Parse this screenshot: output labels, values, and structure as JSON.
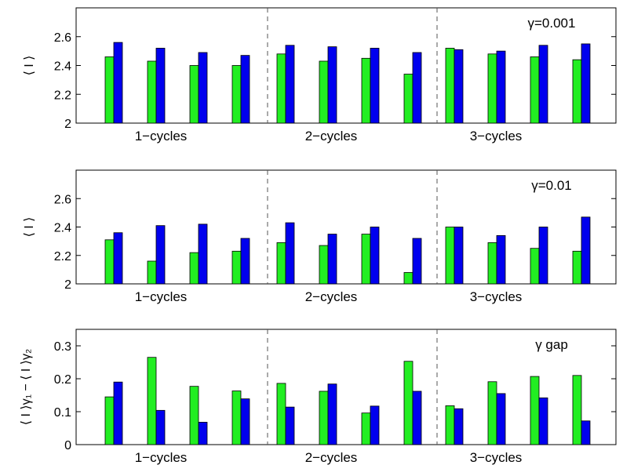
{
  "colors": {
    "green": "#22ee22",
    "blue": "#0000ee",
    "axis": "#000000",
    "divider": "#555555"
  },
  "chart_data": [
    {
      "type": "bar",
      "ylabel": "⟨ I ⟩",
      "annotation": "γ=0.001",
      "ylim": [
        2,
        2.8
      ],
      "yticks": [
        2,
        2.2,
        2.4,
        2.6
      ],
      "ytick_labels": [
        "2",
        "2.2",
        "2.4",
        "2.6"
      ],
      "group_labels": [
        "1−cycles",
        "2−cycles",
        "3−cycles"
      ],
      "series": [
        {
          "values": [
            2.46,
            2.43,
            2.4,
            2.4,
            2.48,
            2.43,
            2.45,
            2.34,
            2.52,
            2.48,
            2.46,
            2.44
          ]
        },
        {
          "values": [
            2.56,
            2.52,
            2.49,
            2.47,
            2.54,
            2.53,
            2.52,
            2.49,
            2.51,
            2.5,
            2.54,
            2.55
          ]
        }
      ]
    },
    {
      "type": "bar",
      "ylabel": "⟨ I ⟩",
      "annotation": "γ=0.01",
      "ylim": [
        2,
        2.8
      ],
      "yticks": [
        2,
        2.2,
        2.4,
        2.6
      ],
      "ytick_labels": [
        "2",
        "2.2",
        "2.4",
        "2.6"
      ],
      "group_labels": [
        "1−cycles",
        "2−cycles",
        "3−cycles"
      ],
      "series": [
        {
          "values": [
            2.31,
            2.16,
            2.22,
            2.23,
            2.29,
            2.27,
            2.35,
            2.08,
            2.4,
            2.29,
            2.25,
            2.23
          ]
        },
        {
          "values": [
            2.36,
            2.41,
            2.42,
            2.32,
            2.43,
            2.35,
            2.4,
            2.32,
            2.4,
            2.34,
            2.4,
            2.47
          ]
        }
      ]
    },
    {
      "type": "bar",
      "ylabel": "⟨ I ⟩γ₁ − ⟨ I ⟩γ₂",
      "annotation": "γ gap",
      "ylim": [
        0,
        0.35
      ],
      "yticks": [
        0,
        0.1,
        0.2,
        0.3
      ],
      "ytick_labels": [
        "0",
        "0.1",
        "0.2",
        "0.3"
      ],
      "group_labels": [
        "1−cycles",
        "2−cycles",
        "3−cycles"
      ],
      "series": [
        {
          "values": [
            0.145,
            0.265,
            0.177,
            0.163,
            0.186,
            0.162,
            0.096,
            0.253,
            0.118,
            0.191,
            0.207,
            0.21
          ]
        },
        {
          "values": [
            0.19,
            0.104,
            0.068,
            0.139,
            0.114,
            0.184,
            0.117,
            0.162,
            0.109,
            0.155,
            0.142,
            0.072
          ]
        }
      ]
    }
  ]
}
